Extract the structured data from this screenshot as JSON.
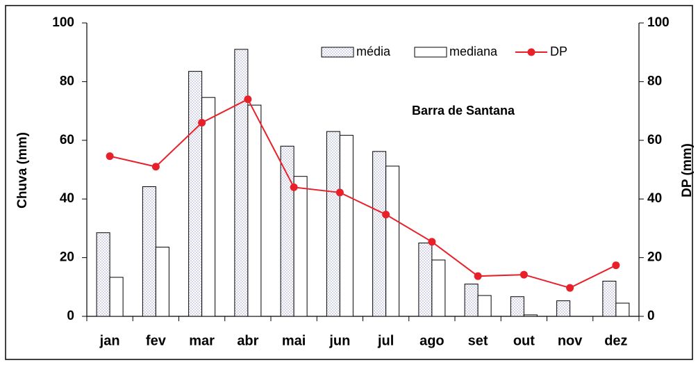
{
  "chart_data": {
    "type": "bar",
    "annotation": "Barra de Santana",
    "y_label": "Chuva (mm)",
    "y2_label": "DP (mm)",
    "categories": [
      "jan",
      "fev",
      "mar",
      "abr",
      "mai",
      "jun",
      "jul",
      "ago",
      "set",
      "out",
      "nov",
      "dez"
    ],
    "series": [
      {
        "name": "média",
        "type": "bar",
        "color": "#b8b8d8",
        "pattern": "dots",
        "values": [
          28.5,
          44.2,
          83.5,
          91,
          58,
          63,
          56.2,
          25,
          11,
          6.7,
          5.3,
          12
        ]
      },
      {
        "name": "mediana",
        "type": "bar",
        "color": "#ffffff",
        "values": [
          13.3,
          23.6,
          74.6,
          72,
          47.7,
          61.7,
          51.2,
          19.2,
          7.1,
          0.5,
          0,
          4.5
        ]
      },
      {
        "name": "DP",
        "type": "line",
        "axis": "y2",
        "color": "#e8202a",
        "values": [
          54.6,
          51,
          66,
          74,
          44,
          42.2,
          34.7,
          25.4,
          13.7,
          14.2,
          9.7,
          17.4
        ]
      }
    ],
    "ylim": [
      0,
      100
    ],
    "yticks": [
      0,
      20,
      40,
      60,
      80,
      100
    ],
    "y2lim": [
      0,
      100
    ],
    "y2ticks": [
      0,
      20,
      40,
      60,
      80,
      100
    ]
  }
}
